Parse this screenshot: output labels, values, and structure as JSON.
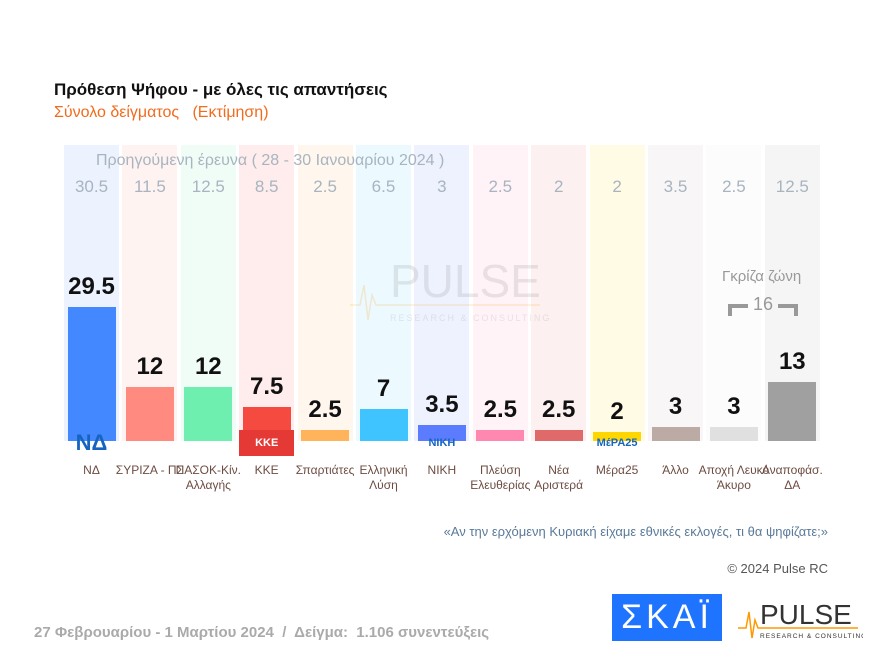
{
  "header": {
    "title": "Πρόθεση Ψήφου - με όλες τις απαντήσεις",
    "subtitle": "Σύνολο δείγματος   (Εκτίμηση)"
  },
  "previous_label": "Προηγούμενη έρευνα ( 28 - 30 Ιανουαρίου 2024 )",
  "grey_zone": {
    "label": "Γκρίζα ζώνη",
    "value": "16"
  },
  "question": "«Αν την ερχόμενη Κυριακή είχαμε εθνικές εκλογές, τι θα ψηφίζατε;»",
  "copyright": "© 2024 Pulse RC",
  "footer": "27 Φεβρουαρίου - 1 Μαρτίου 2024  /  Δείγμα:  1.106 συνεντεύξεις",
  "logos": {
    "skai": "ΣΚΑΪ",
    "pulse": "PULSE",
    "pulse_sub": "RESEARCH & CONSULTING"
  },
  "chart_data": {
    "type": "bar",
    "title": "Πρόθεση Ψήφου - με όλες τις απαντήσεις",
    "subtitle": "Σύνολο δείγματος   (Εκτίμηση)",
    "categories": [
      "ΝΔ",
      "ΣΥΡΙΖΑ - ΠΣ",
      "ΠΑΣΟΚ-Κίν. Αλλαγής",
      "ΚΚΕ",
      "Σπαρτιάτες",
      "Ελληνική Λύση",
      "ΝΙΚΗ",
      "Πλεύση Ελευθερίας",
      "Νέα Αριστερά",
      "Μέρα25",
      "Άλλο",
      "Αποχή Λευκό Άκυρο",
      "Αναποφάσ. ΔΑ"
    ],
    "values": [
      29.5,
      12,
      12,
      7.5,
      2.5,
      7,
      3.5,
      2.5,
      2.5,
      2,
      3,
      3,
      13
    ],
    "previous": [
      30.5,
      11.5,
      12.5,
      8.5,
      2.5,
      6.5,
      3,
      2.5,
      2,
      2,
      3.5,
      2.5,
      12.5
    ],
    "value_labels": [
      "29.5",
      "12",
      "12",
      "7.5",
      "2.5",
      "7",
      "3.5",
      "2.5",
      "2.5",
      "2",
      "3",
      "3",
      "13"
    ],
    "previous_labels": [
      "30.5",
      "11.5",
      "12.5",
      "8.5",
      "2.5",
      "6.5",
      "3",
      "2.5",
      "2",
      "2",
      "3.5",
      "2.5",
      "12.5"
    ],
    "party_logos": [
      "ΝΔ",
      "",
      "",
      "ΚΚΕ",
      "",
      "",
      "ΝΙΚΗ",
      "",
      "",
      "ΜέΡΑ25",
      "",
      "",
      ""
    ],
    "colors": [
      "#4488ff",
      "#ff8a80",
      "#6eefb0",
      "#f44a40",
      "#ffb35a",
      "#40c4ff",
      "#5c7cff",
      "#ff88b0",
      "#e06a6a",
      "#ffd600",
      "#bcaaa4",
      "#e0e0e0",
      "#a0a0a0"
    ],
    "ylim": [
      0,
      33
    ],
    "grid": false
  }
}
